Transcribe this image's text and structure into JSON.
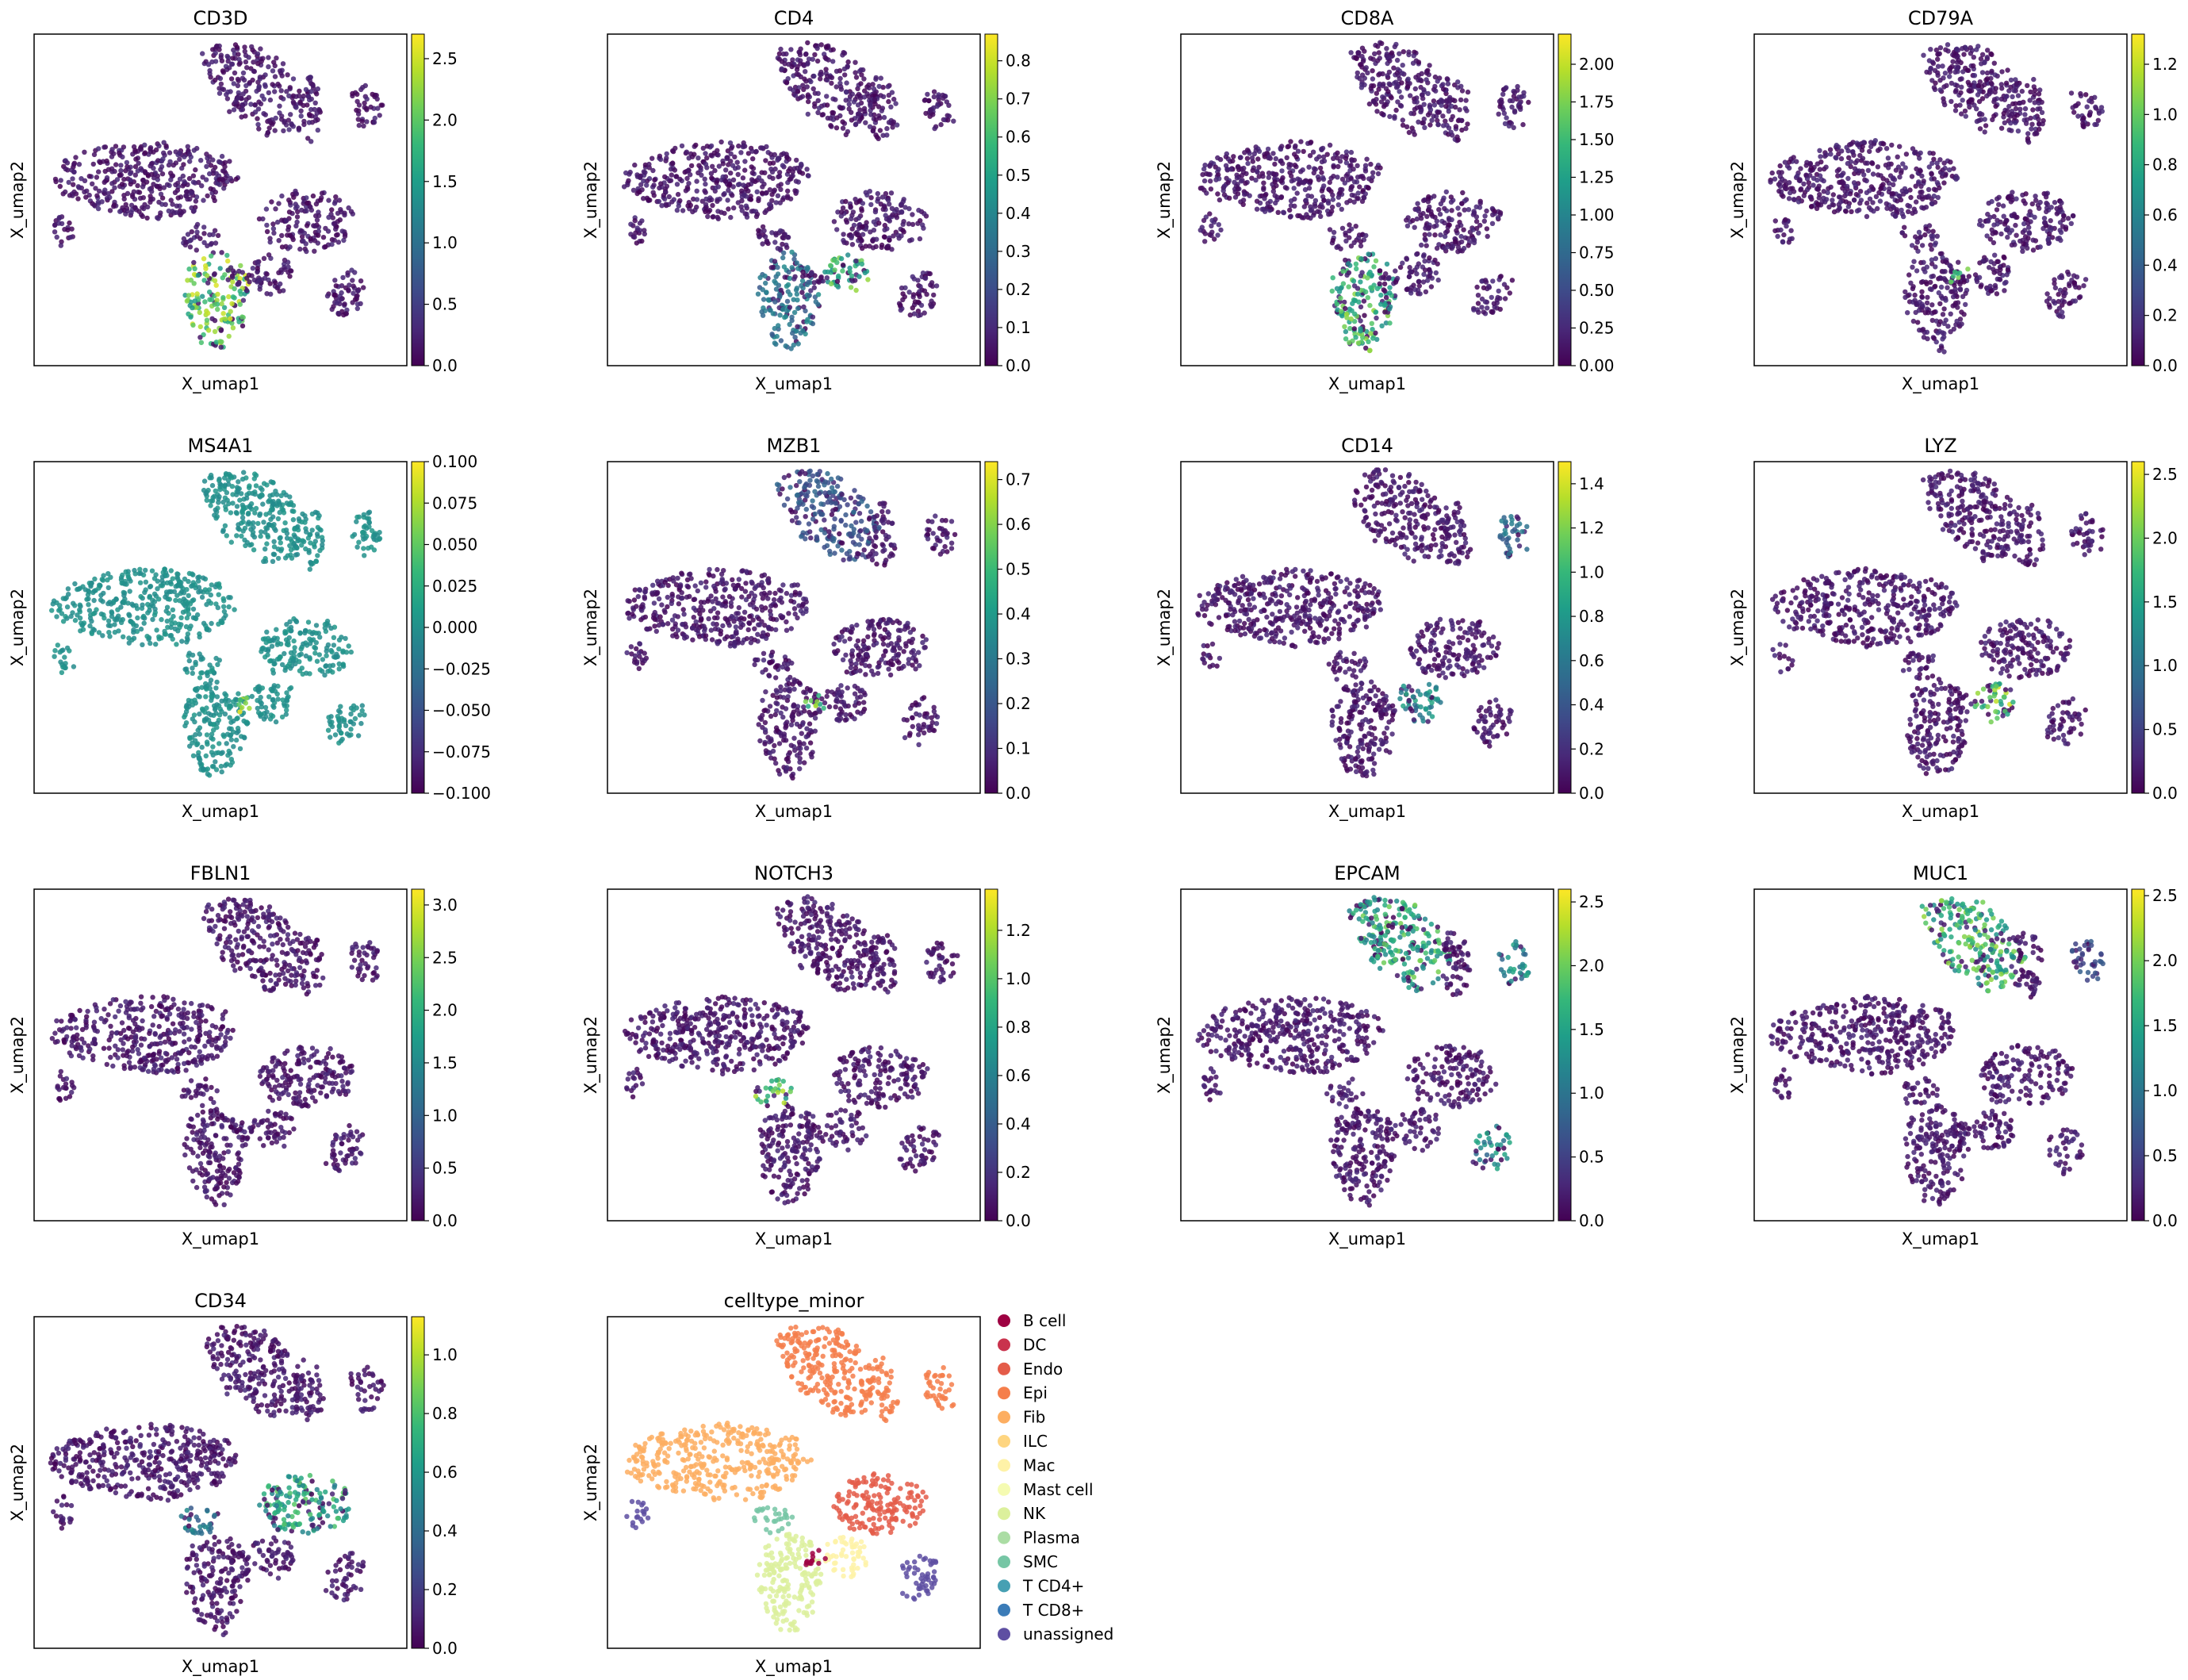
{
  "figure": {
    "xlabel": "X_umap1",
    "ylabel": "X_umap2"
  },
  "chart_data": [
    {
      "type": "scatter",
      "title": "CD3D",
      "colorbar": {
        "range": [
          0,
          2.7
        ],
        "ticks": [
          "0.0",
          "0.5",
          "1.0",
          "1.5",
          "2.0",
          "2.5"
        ],
        "tick_values": [
          0,
          0.5,
          1,
          1.5,
          2,
          2.5
        ]
      },
      "hotspots": [
        {
          "cluster": "Tcell",
          "level": 0.95
        }
      ]
    },
    {
      "type": "scatter",
      "title": "CD4",
      "colorbar": {
        "range": [
          0,
          0.87
        ],
        "ticks": [
          "0.0",
          "0.1",
          "0.2",
          "0.3",
          "0.4",
          "0.5",
          "0.6",
          "0.7",
          "0.8"
        ],
        "tick_values": [
          0,
          0.1,
          0.2,
          0.3,
          0.4,
          0.5,
          0.6,
          0.7,
          0.8
        ]
      },
      "hotspots": [
        {
          "cluster": "Mac",
          "level": 0.85
        },
        {
          "cluster": "Tcell",
          "level": 0.5
        }
      ]
    },
    {
      "type": "scatter",
      "title": "CD8A",
      "colorbar": {
        "range": [
          0,
          2.2
        ],
        "ticks": [
          "0.00",
          "0.25",
          "0.50",
          "0.75",
          "1.00",
          "1.25",
          "1.50",
          "1.75",
          "2.00"
        ],
        "tick_values": [
          0,
          0.25,
          0.5,
          0.75,
          1,
          1.25,
          1.5,
          1.75,
          2
        ]
      },
      "hotspots": [
        {
          "cluster": "Tcell",
          "level": 0.85
        }
      ]
    },
    {
      "type": "scatter",
      "title": "CD79A",
      "colorbar": {
        "range": [
          0,
          1.32
        ],
        "ticks": [
          "0.0",
          "0.2",
          "0.4",
          "0.6",
          "0.8",
          "1.0",
          "1.2"
        ],
        "tick_values": [
          0,
          0.2,
          0.4,
          0.6,
          0.8,
          1,
          1.2
        ]
      },
      "hotspots": [
        {
          "cluster": "Bcell",
          "level": 1
        }
      ]
    },
    {
      "type": "scatter",
      "title": "MS4A1",
      "colorbar": {
        "range": [
          -0.1,
          0.1
        ],
        "ticks": [
          "−0.100",
          "−0.075",
          "−0.050",
          "−0.025",
          "0.000",
          "0.025",
          "0.050",
          "0.075",
          "0.100"
        ],
        "tick_values": [
          -0.1,
          -0.075,
          -0.05,
          -0.025,
          0,
          0.025,
          0.05,
          0.075,
          0.1
        ]
      },
      "uniform_level": 0.5,
      "hotspots": [
        {
          "cluster": "Bcell",
          "level": 1
        }
      ]
    },
    {
      "type": "scatter",
      "title": "MZB1",
      "colorbar": {
        "range": [
          0,
          0.74
        ],
        "ticks": [
          "0.0",
          "0.1",
          "0.2",
          "0.3",
          "0.4",
          "0.5",
          "0.6",
          "0.7"
        ],
        "tick_values": [
          0,
          0.1,
          0.2,
          0.3,
          0.4,
          0.5,
          0.6,
          0.7
        ]
      },
      "hotspots": [
        {
          "cluster": "Bcell",
          "level": 1
        },
        {
          "cluster": "EpiTop",
          "level": 0.35
        }
      ]
    },
    {
      "type": "scatter",
      "title": "CD14",
      "colorbar": {
        "range": [
          0,
          1.5
        ],
        "ticks": [
          "0.0",
          "0.2",
          "0.4",
          "0.6",
          "0.8",
          "1.0",
          "1.2",
          "1.4"
        ],
        "tick_values": [
          0,
          0.2,
          0.4,
          0.6,
          0.8,
          1,
          1.2,
          1.4
        ]
      },
      "hotspots": [
        {
          "cluster": "Mac",
          "level": 0.6
        },
        {
          "cluster": "EpiRight",
          "level": 0.45
        }
      ]
    },
    {
      "type": "scatter",
      "title": "LYZ",
      "colorbar": {
        "range": [
          0,
          2.6
        ],
        "ticks": [
          "0.0",
          "0.5",
          "1.0",
          "1.5",
          "2.0",
          "2.5"
        ],
        "tick_values": [
          0,
          0.5,
          1,
          1.5,
          2,
          2.5
        ]
      },
      "hotspots": [
        {
          "cluster": "Mac",
          "level": 0.95
        }
      ]
    },
    {
      "type": "scatter",
      "title": "FBLN1",
      "colorbar": {
        "range": [
          0,
          3.15
        ],
        "ticks": [
          "0.0",
          "0.5",
          "1.0",
          "1.5",
          "2.0",
          "2.5",
          "3.0"
        ],
        "tick_values": [
          0,
          0.5,
          1,
          1.5,
          2,
          2.5,
          3
        ]
      },
      "hotspots": [
        {
          "cluster": "Fib",
          "level": 0.85
        }
      ]
    },
    {
      "type": "scatter",
      "title": "NOTCH3",
      "colorbar": {
        "range": [
          0,
          1.37
        ],
        "ticks": [
          "0.0",
          "0.2",
          "0.4",
          "0.6",
          "0.8",
          "1.0",
          "1.2"
        ],
        "tick_values": [
          0,
          0.2,
          0.4,
          0.6,
          0.8,
          1,
          1.2
        ]
      },
      "hotspots": [
        {
          "cluster": "SMC",
          "level": 0.9
        },
        {
          "cluster": "Fib",
          "level": 0.3
        }
      ]
    },
    {
      "type": "scatter",
      "title": "EPCAM",
      "colorbar": {
        "range": [
          0,
          2.6
        ],
        "ticks": [
          "0.0",
          "0.5",
          "1.0",
          "1.5",
          "2.0",
          "2.5"
        ],
        "tick_values": [
          0,
          0.5,
          1,
          1.5,
          2,
          2.5
        ]
      },
      "hotspots": [
        {
          "cluster": "EpiTop",
          "level": 0.8
        },
        {
          "cluster": "EpiRight",
          "level": 0.6
        },
        {
          "cluster": "NK",
          "level": 0.6
        }
      ]
    },
    {
      "type": "scatter",
      "title": "MUC1",
      "colorbar": {
        "range": [
          0,
          2.55
        ],
        "ticks": [
          "0.0",
          "0.5",
          "1.0",
          "1.5",
          "2.0",
          "2.5"
        ],
        "tick_values": [
          0,
          0.5,
          1,
          1.5,
          2,
          2.5
        ]
      },
      "hotspots": [
        {
          "cluster": "EpiTop",
          "level": 0.85
        },
        {
          "cluster": "EpiRight",
          "level": 0.3
        }
      ]
    },
    {
      "type": "scatter",
      "title": "CD34",
      "colorbar": {
        "range": [
          0,
          1.13
        ],
        "ticks": [
          "0.0",
          "0.2",
          "0.4",
          "0.6",
          "0.8",
          "1.0"
        ],
        "tick_values": [
          0,
          0.2,
          0.4,
          0.6,
          0.8,
          1
        ]
      },
      "hotspots": [
        {
          "cluster": "Endo",
          "level": 0.75
        },
        {
          "cluster": "SMC",
          "level": 0.5
        }
      ]
    },
    {
      "type": "scatter",
      "title": "celltype_minor",
      "categorical": true,
      "legend": {
        "placement": "right",
        "entries": [
          {
            "name": "B cell",
            "color": "#9e0142"
          },
          {
            "name": "DC",
            "color": "#c9334d"
          },
          {
            "name": "Endo",
            "color": "#e45c49"
          },
          {
            "name": "Epi",
            "color": "#f57e4b"
          },
          {
            "name": "Fib",
            "color": "#fdae61"
          },
          {
            "name": "ILC",
            "color": "#fed580"
          },
          {
            "name": "Mac",
            "color": "#fef2a7"
          },
          {
            "name": "Mast cell",
            "color": "#f5fbb2"
          },
          {
            "name": "NK",
            "color": "#dcf09c"
          },
          {
            "name": "Plasma",
            "color": "#abdda4"
          },
          {
            "name": "SMC",
            "color": "#76c6a5"
          },
          {
            "name": "T CD4+",
            "color": "#47a0b3"
          },
          {
            "name": "T CD8+",
            "color": "#3b7cb8"
          },
          {
            "name": "unassigned",
            "color": "#5e4fa2"
          }
        ]
      }
    }
  ],
  "colormap": [
    "#440154",
    "#482878",
    "#3e4a89",
    "#31688e",
    "#26828e",
    "#1f9e89",
    "#35b779",
    "#6ece58",
    "#b5de2b",
    "#fde725"
  ]
}
